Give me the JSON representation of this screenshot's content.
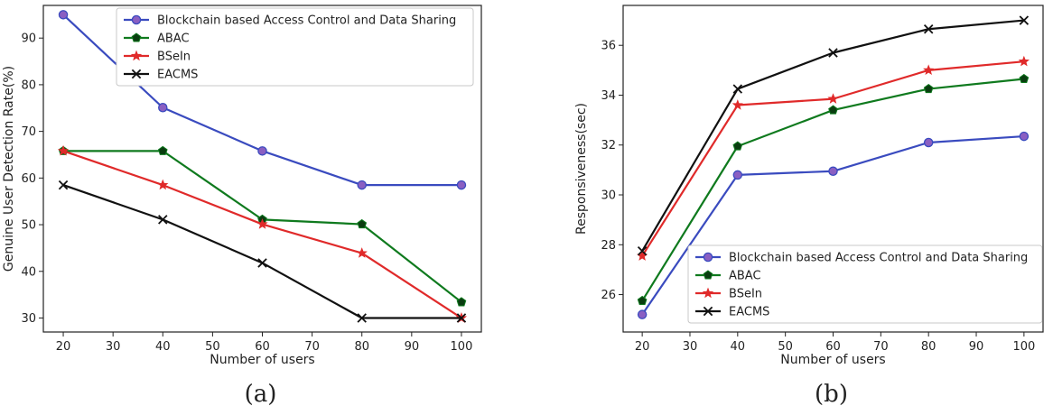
{
  "chart_data": [
    {
      "type": "line",
      "panel_label": "(a)",
      "xlabel": "Number of users",
      "ylabel": "Genuine User Detection Rate(%)",
      "xlim": [
        16,
        104
      ],
      "ylim": [
        27,
        97
      ],
      "xticks": [
        20,
        30,
        40,
        50,
        60,
        70,
        80,
        90,
        100
      ],
      "yticks": [
        30,
        40,
        50,
        60,
        70,
        80,
        90
      ],
      "legend_position": "top-right",
      "x": [
        20,
        40,
        60,
        80,
        100
      ],
      "series": [
        {
          "name": "Blockchain based Access Control and Data Sharing",
          "color": "#3a4bbf",
          "marker": "circle",
          "values": [
            95,
            75.1,
            65.8,
            58.5,
            58.5
          ]
        },
        {
          "name": "ABAC",
          "color": "#0f7a1e",
          "marker": "pentagon",
          "values": [
            65.8,
            65.8,
            51.1,
            50.1,
            33.4
          ]
        },
        {
          "name": "BSeIn",
          "color": "#e02a2a",
          "marker": "star",
          "values": [
            65.8,
            58.5,
            50.1,
            43.9,
            30
          ]
        },
        {
          "name": "EACMS",
          "color": "#111111",
          "marker": "x",
          "values": [
            58.5,
            51.1,
            41.8,
            30,
            30
          ]
        }
      ]
    },
    {
      "type": "line",
      "panel_label": "(b)",
      "xlabel": "Number of users",
      "ylabel": "Responsiveness(sec)",
      "xlim": [
        16,
        104
      ],
      "ylim": [
        24.5,
        37.6
      ],
      "xticks": [
        20,
        30,
        40,
        50,
        60,
        70,
        80,
        90,
        100
      ],
      "yticks": [
        26,
        28,
        30,
        32,
        34,
        36
      ],
      "legend_position": "bottom-right",
      "x": [
        20,
        40,
        60,
        80,
        100
      ],
      "series": [
        {
          "name": "Blockchain based Access Control and Data Sharing",
          "color": "#3a4bbf",
          "marker": "circle",
          "values": [
            25.2,
            30.8,
            30.95,
            32.1,
            32.35
          ]
        },
        {
          "name": "ABAC",
          "color": "#0f7a1e",
          "marker": "pentagon",
          "values": [
            25.75,
            31.95,
            33.4,
            34.25,
            34.65
          ]
        },
        {
          "name": "BSeIn",
          "color": "#e02a2a",
          "marker": "star",
          "values": [
            27.55,
            33.6,
            33.85,
            35.0,
            35.35
          ]
        },
        {
          "name": "EACMS",
          "color": "#111111",
          "marker": "x",
          "values": [
            27.75,
            34.25,
            35.7,
            36.65,
            37.0
          ]
        }
      ]
    }
  ]
}
